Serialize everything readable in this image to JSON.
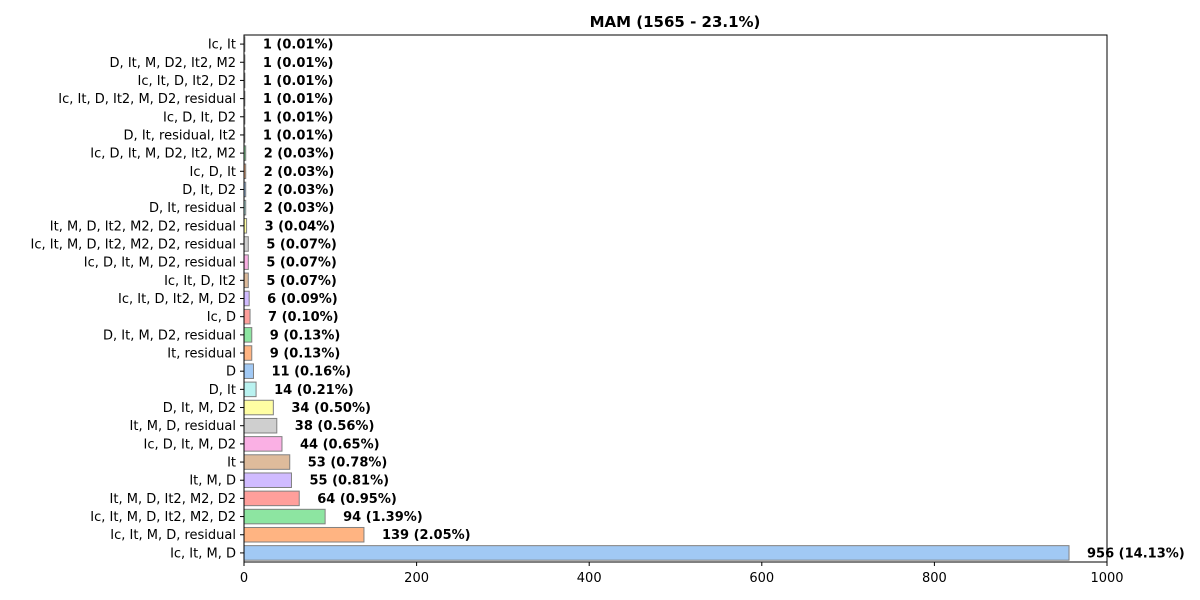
{
  "chart_data": {
    "type": "bar",
    "orientation": "horizontal",
    "title": "MAM (1565 - 23.1%)",
    "xlabel": "",
    "ylabel": "",
    "xlim": [
      0,
      1000
    ],
    "xticks": [
      "0",
      "200",
      "400",
      "600",
      "800",
      "1000"
    ],
    "grid": false,
    "categories": [
      "Ic, It, M, D",
      "Ic, It, M, D, residual",
      "Ic, It, M, D, It2, M2, D2",
      "It, M, D, It2, M2, D2",
      "It, M, D",
      "It",
      "Ic, D, It, M, D2",
      "It, M, D, residual",
      "D, It, M, D2",
      "D, It",
      "D",
      "It, residual",
      "D, It, M, D2, residual",
      "Ic, D",
      "Ic, It, D, It2, M, D2",
      "Ic, It, D, It2",
      "Ic, D, It, M, D2, residual",
      "Ic, It, M, D, It2, M2, D2, residual",
      "It, M, D, It2, M2, D2, residual",
      "D, It, residual",
      "D, It, D2",
      "Ic, D, It",
      "Ic, D, It, M, D2, It2, M2",
      "D, It, residual, It2",
      "Ic, D, It, D2",
      "Ic, It, D, It2, M, D2, residual",
      "Ic, It, D, It2, D2",
      "D, It, M, D2, It2, M2",
      "Ic, It"
    ],
    "values": [
      956,
      139,
      94,
      64,
      55,
      53,
      44,
      38,
      34,
      14,
      11,
      9,
      9,
      7,
      6,
      5,
      5,
      5,
      3,
      2,
      2,
      2,
      2,
      1,
      1,
      1,
      1,
      1,
      1
    ],
    "labels": [
      "956 (14.13%)",
      "139 (2.05%)",
      "94 (1.39%)",
      "64 (0.95%)",
      "55 (0.81%)",
      "53 (0.78%)",
      "44 (0.65%)",
      "38 (0.56%)",
      "34 (0.50%)",
      "14 (0.21%)",
      "11 (0.16%)",
      "9 (0.13%)",
      "9 (0.13%)",
      "7 (0.10%)",
      "6 (0.09%)",
      "5 (0.07%)",
      "5 (0.07%)",
      "5 (0.07%)",
      "3 (0.04%)",
      "2 (0.03%)",
      "2 (0.03%)",
      "2 (0.03%)",
      "2 (0.03%)",
      "1 (0.01%)",
      "1 (0.01%)",
      "1 (0.01%)",
      "1 (0.01%)",
      "1 (0.01%)",
      "1 (0.01%)"
    ],
    "colors": [
      "#a1c9f4",
      "#ffb482",
      "#8de5a1",
      "#ff9f9b",
      "#d0bbff",
      "#debb9b",
      "#fab0e4",
      "#cfcfcf",
      "#fffea3",
      "#b9f2f0"
    ],
    "bar_edge_color": "#808080"
  }
}
